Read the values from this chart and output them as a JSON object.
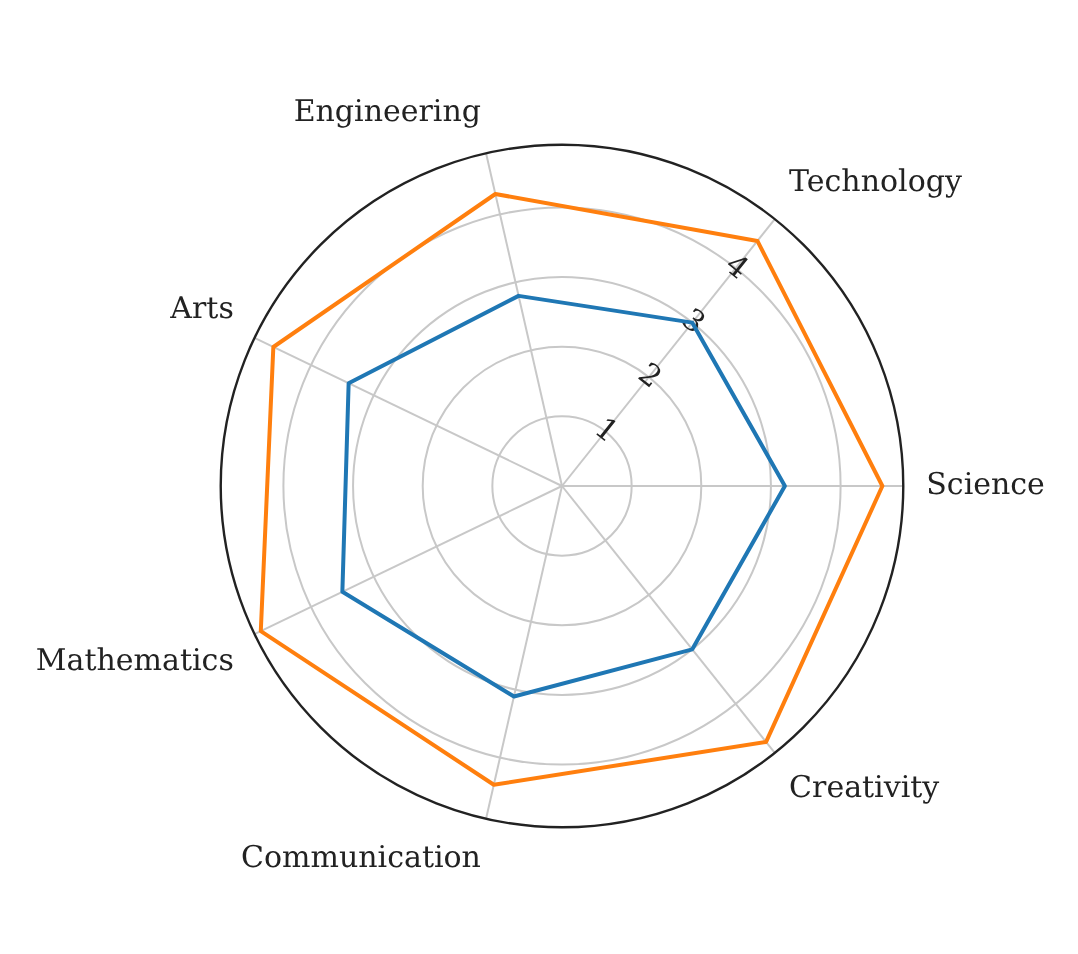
{
  "chart_data": {
    "type": "radar",
    "categories": [
      "Technology",
      "Science",
      "Creativity",
      "Communication",
      "Mathematics",
      "Arts",
      "Engineering"
    ],
    "series": [
      {
        "color": "#1f77b4",
        "values": [
          3.0,
          3.2,
          3.0,
          3.1,
          3.5,
          3.4,
          2.8
        ]
      },
      {
        "color": "#ff7f0e",
        "values": [
          4.5,
          4.6,
          4.7,
          4.4,
          4.8,
          4.6,
          4.3
        ]
      }
    ],
    "ylim": [
      0,
      4.9
    ],
    "yticks": [
      1,
      2,
      3,
      4
    ],
    "grid": true,
    "legend": false,
    "marker": "none"
  }
}
